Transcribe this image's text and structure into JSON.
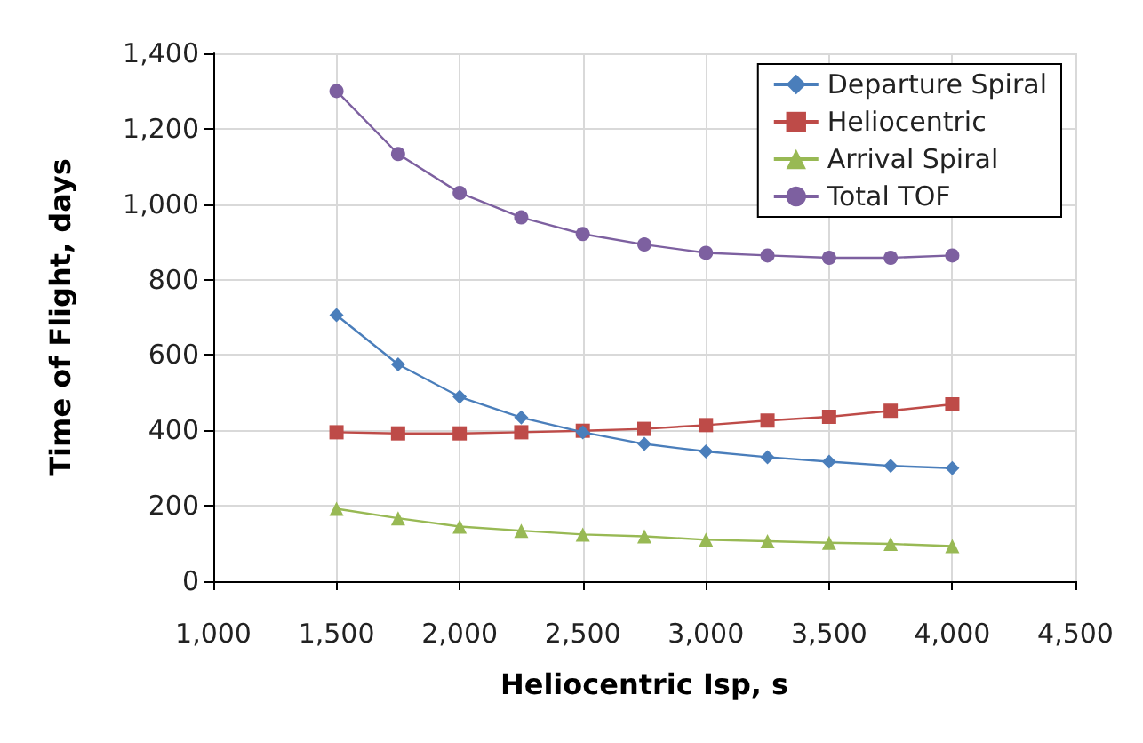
{
  "chart_data": {
    "type": "line",
    "xlabel": "Heliocentric Isp, s",
    "ylabel": "Time of Flight, days",
    "x": [
      1500,
      1750,
      2000,
      2250,
      2500,
      2750,
      3000,
      3250,
      3500,
      3750,
      4000
    ],
    "series": [
      {
        "name": "Departure Spiral",
        "color": "#4a7ebb",
        "marker": "diamond",
        "values": [
          706,
          575,
          489,
          434,
          395,
          364,
          344,
          329,
          317,
          306,
          300
        ]
      },
      {
        "name": "Heliocentric",
        "color": "#be4b48",
        "marker": "square",
        "values": [
          395,
          392,
          392,
          395,
          399,
          404,
          414,
          426,
          436,
          452,
          469
        ]
      },
      {
        "name": "Arrival Spiral",
        "color": "#98b954",
        "marker": "triangle",
        "values": [
          192,
          167,
          145,
          134,
          124,
          119,
          110,
          106,
          102,
          99,
          93
        ]
      },
      {
        "name": "Total TOF",
        "color": "#7d60a0",
        "marker": "circle",
        "values": [
          1300,
          1133,
          1030,
          965,
          921,
          893,
          871,
          864,
          858,
          858,
          864
        ]
      }
    ],
    "xlim": [
      1000,
      4500
    ],
    "xticks": [
      {
        "value": 1000,
        "label": "1,000"
      },
      {
        "value": 1500,
        "label": "1,500"
      },
      {
        "value": 2000,
        "label": "2,000"
      },
      {
        "value": 2500,
        "label": "2,500"
      },
      {
        "value": 3000,
        "label": "3,000"
      },
      {
        "value": 3500,
        "label": "3,500"
      },
      {
        "value": 4000,
        "label": "4,000"
      },
      {
        "value": 4500,
        "label": "4,500"
      }
    ],
    "ylim": [
      0,
      1400
    ],
    "yticks": [
      0,
      200,
      400,
      600,
      800,
      {
        "value": 1000,
        "label": "1,000"
      },
      {
        "value": 1200,
        "label": "1,200"
      },
      {
        "value": 1400,
        "label": "1,400"
      }
    ],
    "grid": true,
    "legend": "top right",
    "line_style": "solid"
  }
}
